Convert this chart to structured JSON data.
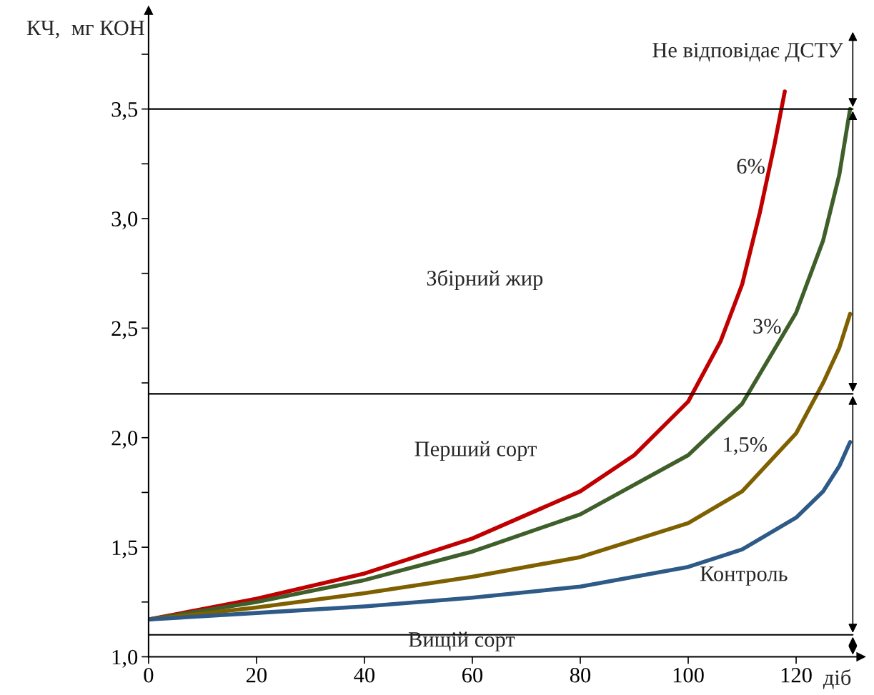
{
  "chart_data": {
    "type": "line",
    "ylabel": "КЧ,  мг КОН",
    "xlabel": "діб",
    "xlim": [
      0,
      132
    ],
    "xticks": [
      0,
      20,
      40,
      60,
      80,
      100,
      {
        "value": 120,
        "label": "120"
      }
    ],
    "ylim": [
      1.0,
      3.95
    ],
    "yticks": [
      {
        "value": 1.0,
        "label": "1,0"
      },
      {
        "value": 1.25,
        "label": null
      },
      {
        "value": 1.5,
        "label": "1,5"
      },
      {
        "value": 1.75,
        "label": null
      },
      {
        "value": 2.0,
        "label": "2,0"
      },
      {
        "value": 2.25,
        "label": null
      },
      {
        "value": 2.5,
        "label": "2,5"
      },
      {
        "value": 2.75,
        "label": null
      },
      {
        "value": 3.0,
        "label": "3,0"
      },
      {
        "value": 3.25,
        "label": null
      },
      {
        "value": 3.5,
        "label": "3,5"
      },
      {
        "value": 3.75,
        "label": null
      }
    ],
    "grid": false,
    "legend": false,
    "marker": "none",
    "line_style": "solid",
    "series": [
      {
        "name": "6%",
        "color": "#c00000",
        "x": [
          0,
          20,
          40,
          60,
          80,
          90,
          100,
          106,
          110,
          113.3,
          116,
          117.9
        ],
        "values": [
          1.17,
          1.265,
          1.38,
          1.54,
          1.755,
          1.92,
          2.165,
          2.44,
          2.7,
          3.03,
          3.34,
          3.58
        ]
      },
      {
        "name": "3%",
        "color": "#3f5f2a",
        "x": [
          0,
          20,
          40,
          60,
          80,
          100,
          110,
          120,
          125,
          128,
          130
        ],
        "values": [
          1.17,
          1.25,
          1.35,
          1.48,
          1.65,
          1.92,
          2.155,
          2.57,
          2.9,
          3.2,
          3.5
        ]
      },
      {
        "name": "1,5%",
        "color": "#7f6000",
        "x": [
          0,
          20,
          40,
          60,
          80,
          100,
          110,
          120,
          125,
          128,
          130
        ],
        "values": [
          1.17,
          1.225,
          1.29,
          1.365,
          1.455,
          1.61,
          1.755,
          2.02,
          2.25,
          2.41,
          2.565
        ]
      },
      {
        "name": "Контроль",
        "color": "#2e5a87",
        "x": [
          0,
          20,
          40,
          60,
          80,
          100,
          110,
          120,
          125,
          128,
          130
        ],
        "values": [
          1.17,
          1.2,
          1.23,
          1.27,
          1.32,
          1.41,
          1.49,
          1.635,
          1.755,
          1.87,
          1.98
        ]
      }
    ],
    "ref_lines": [
      {
        "axis": "y",
        "value": 3.5,
        "color": "#000000"
      },
      {
        "axis": "y",
        "value": 2.2,
        "color": "#000000"
      },
      {
        "axis": "y",
        "value": 1.1,
        "color": "#000000"
      }
    ],
    "annotations": [
      "Не відповідає ДСТУ",
      "Збірний жир",
      "Перший сорт",
      "Вищій сорт"
    ]
  }
}
